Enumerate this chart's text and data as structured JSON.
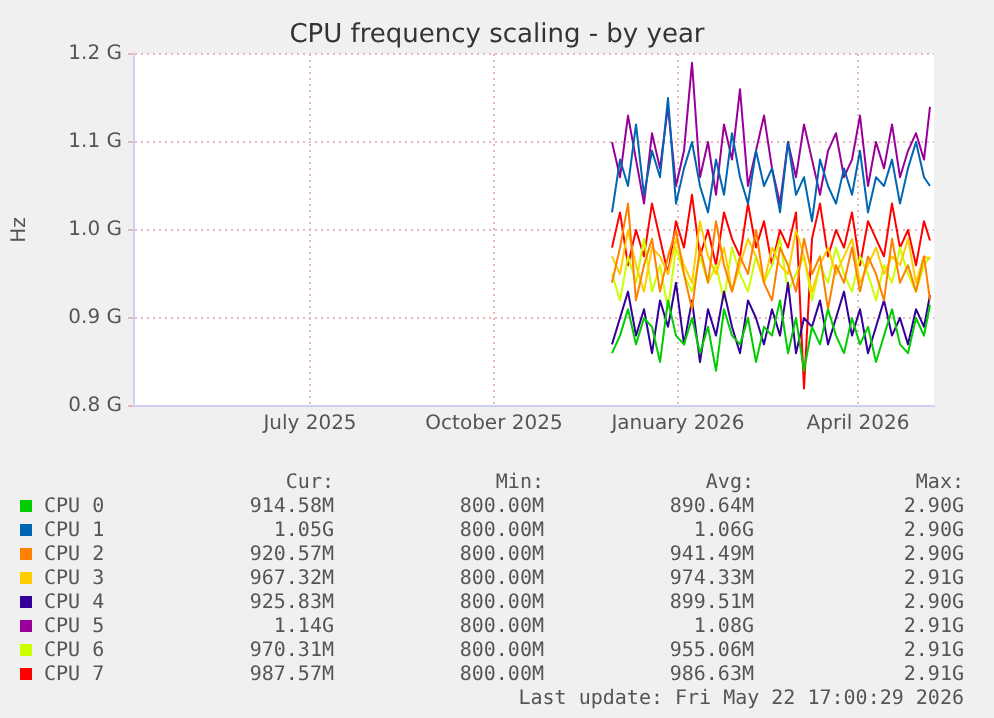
{
  "chart_data": {
    "type": "line",
    "title": "CPU frequency scaling - by year",
    "ylabel": "Hz",
    "x": [
      "2025-12-14",
      "2025-12-18",
      "2025-12-22",
      "2025-12-26",
      "2025-12-30",
      "2026-01-03",
      "2026-01-07",
      "2026-01-11",
      "2026-01-15",
      "2026-01-19",
      "2026-01-23",
      "2026-01-27",
      "2026-01-31",
      "2026-02-04",
      "2026-02-08",
      "2026-02-12",
      "2026-02-16",
      "2026-02-20",
      "2026-02-24",
      "2026-02-28",
      "2026-03-04",
      "2026-03-08",
      "2026-03-12",
      "2026-03-16",
      "2026-03-20",
      "2026-03-24",
      "2026-03-28",
      "2026-04-01",
      "2026-04-05",
      "2026-04-09",
      "2026-04-13",
      "2026-04-17",
      "2026-04-21",
      "2026-04-25",
      "2026-04-29",
      "2026-05-03",
      "2026-05-07",
      "2026-05-11",
      "2026-05-15",
      "2026-05-19",
      "2026-05-22"
    ],
    "xlim": [
      "2025-04-19",
      "2026-05-24"
    ],
    "xticks": [
      {
        "value": "2025-07-16",
        "label": "July 2025"
      },
      {
        "value": "2025-10-16",
        "label": "October 2025"
      },
      {
        "value": "2026-01-16",
        "label": "January 2026"
      },
      {
        "value": "2026-04-16",
        "label": "April 2026"
      }
    ],
    "ylim": [
      0.8,
      1.2
    ],
    "yticks": [
      {
        "value": 0.8,
        "label": "0.8 G"
      },
      {
        "value": 0.9,
        "label": "0.9 G"
      },
      {
        "value": 1.0,
        "label": "1.0 G"
      },
      {
        "value": 1.1,
        "label": "1.1 G"
      },
      {
        "value": 1.2,
        "label": "1.2 G"
      }
    ],
    "grid": true,
    "legend": "bottom",
    "marker": "none",
    "line_style": "solid",
    "series": [
      {
        "name": "CPU 0",
        "color": "#00cc00",
        "values": [
          0.86,
          0.88,
          0.91,
          0.87,
          0.9,
          0.89,
          0.85,
          0.92,
          0.88,
          0.87,
          0.9,
          0.86,
          0.89,
          0.84,
          0.91,
          0.88,
          0.87,
          0.9,
          0.85,
          0.89,
          0.88,
          0.92,
          0.86,
          0.9,
          0.84,
          0.89,
          0.87,
          0.91,
          0.88,
          0.86,
          0.9,
          0.87,
          0.89,
          0.85,
          0.88,
          0.91,
          0.87,
          0.86,
          0.9,
          0.88,
          0.915
        ]
      },
      {
        "name": "CPU 1",
        "color": "#0066b3",
        "values": [
          1.02,
          1.08,
          1.05,
          1.12,
          1.04,
          1.09,
          1.06,
          1.15,
          1.03,
          1.07,
          1.1,
          1.05,
          1.02,
          1.08,
          1.04,
          1.11,
          1.06,
          1.03,
          1.09,
          1.05,
          1.07,
          1.02,
          1.1,
          1.04,
          1.06,
          1.01,
          1.08,
          1.05,
          1.03,
          1.07,
          1.04,
          1.09,
          1.02,
          1.06,
          1.05,
          1.08,
          1.03,
          1.07,
          1.1,
          1.06,
          1.05
        ]
      },
      {
        "name": "CPU 2",
        "color": "#ff8000",
        "values": [
          0.94,
          0.98,
          1.03,
          0.92,
          0.96,
          0.99,
          0.93,
          0.97,
          1.0,
          0.95,
          0.91,
          0.98,
          0.94,
          1.01,
          0.96,
          0.93,
          0.97,
          0.95,
          1.0,
          0.94,
          0.92,
          0.98,
          0.96,
          0.93,
          0.99,
          0.95,
          0.97,
          0.91,
          0.96,
          0.94,
          0.98,
          0.93,
          0.97,
          0.95,
          0.92,
          0.99,
          0.94,
          0.96,
          0.93,
          0.97,
          0.92
        ]
      },
      {
        "name": "CPU 3",
        "color": "#ffcc00",
        "values": [
          0.97,
          0.95,
          1.0,
          0.96,
          0.93,
          0.98,
          0.97,
          0.95,
          0.99,
          0.96,
          0.94,
          1.01,
          0.97,
          0.95,
          0.98,
          0.93,
          0.96,
          0.99,
          0.97,
          0.94,
          0.98,
          0.96,
          0.95,
          1.0,
          0.97,
          0.93,
          0.96,
          0.98,
          0.95,
          0.97,
          0.99,
          0.94,
          0.96,
          0.98,
          0.95,
          0.97,
          0.96,
          0.99,
          0.94,
          0.97,
          0.967
        ]
      },
      {
        "name": "CPU 4",
        "color": "#330099",
        "values": [
          0.87,
          0.9,
          0.93,
          0.88,
          0.91,
          0.86,
          0.92,
          0.89,
          0.94,
          0.87,
          0.92,
          0.85,
          0.91,
          0.88,
          0.93,
          0.89,
          0.86,
          0.92,
          0.9,
          0.87,
          0.91,
          0.88,
          0.94,
          0.86,
          0.9,
          0.89,
          0.92,
          0.87,
          0.9,
          0.93,
          0.88,
          0.91,
          0.86,
          0.89,
          0.92,
          0.88,
          0.9,
          0.87,
          0.91,
          0.89,
          0.926
        ]
      },
      {
        "name": "CPU 5",
        "color": "#990099",
        "values": [
          1.1,
          1.06,
          1.13,
          1.08,
          1.03,
          1.11,
          1.07,
          1.14,
          1.05,
          1.09,
          1.19,
          1.06,
          1.1,
          1.04,
          1.12,
          1.08,
          1.16,
          1.05,
          1.09,
          1.13,
          1.07,
          1.03,
          1.1,
          1.06,
          1.12,
          1.08,
          1.04,
          1.09,
          1.11,
          1.06,
          1.08,
          1.13,
          1.05,
          1.1,
          1.07,
          1.12,
          1.06,
          1.09,
          1.11,
          1.08,
          1.14
        ]
      },
      {
        "name": "CPU 6",
        "color": "#ccff00",
        "values": [
          0.95,
          0.92,
          0.97,
          0.94,
          0.99,
          0.93,
          0.96,
          0.91,
          0.98,
          0.95,
          0.93,
          0.97,
          0.94,
          0.96,
          0.92,
          0.98,
          0.95,
          0.93,
          0.97,
          0.94,
          0.96,
          0.99,
          0.93,
          0.95,
          0.97,
          0.92,
          0.96,
          0.94,
          0.98,
          0.95,
          0.93,
          0.97,
          0.95,
          0.92,
          0.96,
          0.94,
          0.98,
          0.95,
          0.93,
          0.96,
          0.97
        ]
      },
      {
        "name": "CPU 7",
        "color": "#ff0000",
        "values": [
          0.98,
          1.02,
          0.96,
          1.0,
          0.97,
          1.03,
          0.99,
          0.95,
          1.01,
          0.98,
          1.04,
          0.97,
          1.0,
          0.96,
          1.02,
          0.99,
          0.97,
          1.03,
          0.98,
          1.01,
          0.96,
          1.0,
          0.98,
          1.02,
          0.82,
          0.99,
          1.03,
          0.97,
          1.0,
          0.98,
          1.02,
          0.96,
          1.01,
          0.99,
          0.97,
          1.03,
          0.98,
          1.0,
          0.96,
          1.01,
          0.988
        ]
      }
    ],
    "annotations": [
      "Cur:",
      "Min:",
      "Avg:",
      "Max:",
      "914.58M",
      "800.00M",
      "890.64M",
      "2.90G",
      "1.05G",
      "800.00M",
      "1.06G",
      "2.90G",
      "920.57M",
      "800.00M",
      "941.49M",
      "2.90G",
      "967.32M",
      "800.00M",
      "974.33M",
      "2.91G",
      "925.83M",
      "800.00M",
      "899.51M",
      "2.90G",
      "1.14G",
      "800.00M",
      "1.08G",
      "2.91G",
      "970.31M",
      "800.00M",
      "955.06M",
      "2.91G",
      "987.57M",
      "800.00M",
      "986.63M",
      "2.91G",
      "Last update: Fri May 22 17:00:29 2026"
    ]
  }
}
